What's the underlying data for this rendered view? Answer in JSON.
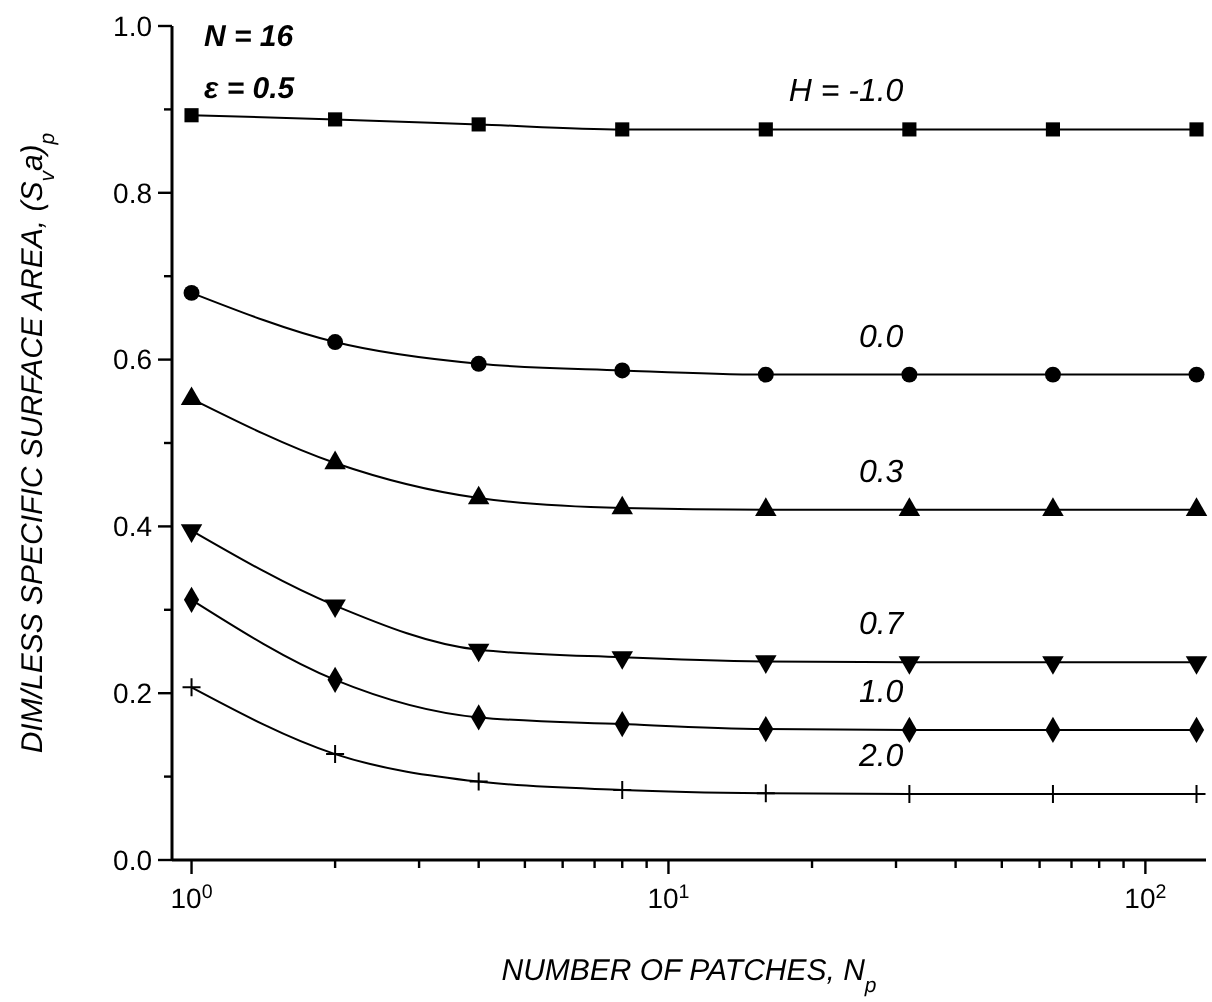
{
  "chart_data": {
    "type": "line",
    "xlabel": "NUMBER OF PATCHES, N$_{p}$",
    "ylabel": "DIM/LESS SPECIFIC SURFACE AREA, (S$_{v}$a)$_{p}$",
    "annotations": [
      "N = 16",
      "ε = 0.5"
    ],
    "log": "x",
    "grid": false,
    "line_style": "solid",
    "x": [
      1,
      2,
      4,
      8,
      16,
      32,
      64,
      128
    ],
    "xlim": [
      0.91,
      134
    ],
    "xticks": [
      {
        "value": 1,
        "label": "10$^{0}$"
      },
      {
        "value": 2,
        "label": null
      },
      {
        "value": 3,
        "label": null
      },
      {
        "value": 4,
        "label": null
      },
      {
        "value": 5,
        "label": null
      },
      {
        "value": 6,
        "label": null
      },
      {
        "value": 7,
        "label": null
      },
      {
        "value": 8,
        "label": null
      },
      {
        "value": 9,
        "label": null
      },
      {
        "value": 10,
        "label": "10$^{1}$"
      },
      {
        "value": 20,
        "label": null
      },
      {
        "value": 30,
        "label": null
      },
      {
        "value": 40,
        "label": null
      },
      {
        "value": 50,
        "label": null
      },
      {
        "value": 60,
        "label": null
      },
      {
        "value": 70,
        "label": null
      },
      {
        "value": 80,
        "label": null
      },
      {
        "value": 90,
        "label": null
      },
      {
        "value": 100,
        "label": "10$^{2}$"
      }
    ],
    "ylim": [
      0,
      1
    ],
    "yticks": [
      {
        "value": 0,
        "label": "0.0"
      },
      {
        "value": 0.1,
        "label": null
      },
      {
        "value": 0.2,
        "label": "0.2"
      },
      {
        "value": 0.3,
        "label": null
      },
      {
        "value": 0.4,
        "label": "0.4"
      },
      {
        "value": 0.5,
        "label": null
      },
      {
        "value": 0.6,
        "label": "0.6"
      },
      {
        "value": 0.7,
        "label": null
      },
      {
        "value": 0.8,
        "label": "0.8"
      },
      {
        "value": 0.9,
        "label": null
      },
      {
        "value": 1,
        "label": "1.0"
      }
    ],
    "series": [
      {
        "name": "H = -1.0",
        "color": "#000000",
        "marker": "square",
        "values": [
          0.893,
          0.888,
          0.882,
          0.876,
          0.876,
          0.876,
          0.876,
          0.876
        ]
      },
      {
        "name": "0.0",
        "color": "#000000",
        "marker": "circle",
        "values": [
          0.68,
          0.621,
          0.595,
          0.587,
          0.582,
          0.582,
          0.582,
          0.582
        ]
      },
      {
        "name": "0.3",
        "color": "#000000",
        "marker": "triangle",
        "values": [
          0.553,
          0.476,
          0.434,
          0.422,
          0.42,
          0.42,
          0.42,
          0.42
        ]
      },
      {
        "name": "0.7",
        "color": "#000000",
        "marker": "triangle-down",
        "values": [
          0.395,
          0.305,
          0.252,
          0.243,
          0.238,
          0.237,
          0.237,
          0.237
        ]
      },
      {
        "name": "1.0",
        "color": "#000000",
        "marker": "diamond",
        "values": [
          0.312,
          0.216,
          0.171,
          0.163,
          0.157,
          0.156,
          0.156,
          0.156
        ]
      },
      {
        "name": "2.0",
        "color": "#000000",
        "marker": "cross",
        "values": [
          0.207,
          0.127,
          0.094,
          0.084,
          0.08,
          0.079,
          0.079,
          0.079
        ]
      }
    ]
  }
}
